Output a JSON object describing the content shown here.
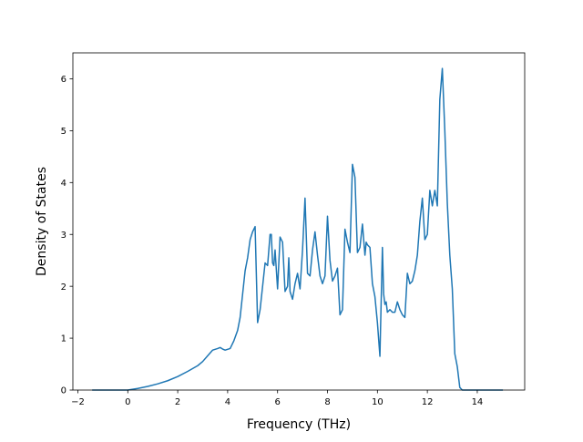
{
  "chart_data": {
    "type": "line",
    "title": "",
    "xlabel": "Frequency (THz)",
    "ylabel": "Density of States",
    "xlim": [
      -2.2,
      15.9
    ],
    "ylim": [
      0,
      6.5
    ],
    "xticks": [
      -2,
      0,
      2,
      4,
      6,
      8,
      10,
      12,
      14
    ],
    "yticks": [
      0,
      1,
      2,
      3,
      4,
      5,
      6
    ],
    "xtick_labels": [
      "−2",
      "0",
      "2",
      "4",
      "6",
      "8",
      "10",
      "12",
      "14"
    ],
    "ytick_labels": [
      "0",
      "1",
      "2",
      "3",
      "4",
      "5",
      "6"
    ],
    "grid": false,
    "legend": "none",
    "line_color": "#1f77b4",
    "series": [
      {
        "x": [
          -1.4,
          -0.6,
          0.0,
          0.4,
          0.8,
          1.2,
          1.6,
          2.0,
          2.4,
          2.8,
          3.0,
          3.2,
          3.4,
          3.6,
          3.7,
          3.8,
          3.9,
          4.1,
          4.25,
          4.4,
          4.5,
          4.6,
          4.7,
          4.8,
          4.9,
          5.0,
          5.1,
          5.2,
          5.3,
          5.4,
          5.5,
          5.6,
          5.7,
          5.75,
          5.8,
          5.85,
          5.9,
          6.0,
          6.1,
          6.2,
          6.3,
          6.4,
          6.45,
          6.5,
          6.6,
          6.7,
          6.8,
          6.9,
          7.0,
          7.1,
          7.2,
          7.3,
          7.4,
          7.5,
          7.6,
          7.7,
          7.8,
          7.9,
          8.0,
          8.1,
          8.2,
          8.3,
          8.4,
          8.5,
          8.6,
          8.7,
          8.8,
          8.9,
          9.0,
          9.1,
          9.2,
          9.3,
          9.4,
          9.5,
          9.55,
          9.6,
          9.7,
          9.8,
          9.9,
          10.0,
          10.1,
          10.2,
          10.25,
          10.3,
          10.35,
          10.4,
          10.5,
          10.6,
          10.7,
          10.8,
          10.9,
          11.0,
          11.1,
          11.2,
          11.3,
          11.4,
          11.5,
          11.6,
          11.7,
          11.8,
          11.9,
          12.0,
          12.1,
          12.2,
          12.3,
          12.4,
          12.5,
          12.6,
          12.7,
          12.75,
          12.8,
          12.9,
          13.0,
          13.1,
          13.2,
          13.3,
          13.4,
          13.5,
          13.6,
          13.7,
          14.0,
          14.5,
          15.0
        ],
        "y": [
          0.0,
          0.0,
          0.0,
          0.03,
          0.07,
          0.12,
          0.18,
          0.26,
          0.36,
          0.47,
          0.55,
          0.66,
          0.77,
          0.8,
          0.82,
          0.79,
          0.77,
          0.8,
          0.95,
          1.15,
          1.4,
          1.85,
          2.3,
          2.55,
          2.9,
          3.05,
          3.15,
          1.3,
          1.55,
          2.0,
          2.45,
          2.4,
          3.0,
          3.0,
          2.45,
          2.4,
          2.7,
          1.95,
          2.95,
          2.85,
          1.9,
          2.0,
          2.55,
          1.9,
          1.75,
          2.05,
          2.25,
          1.95,
          2.7,
          3.7,
          2.25,
          2.2,
          2.7,
          3.05,
          2.6,
          2.2,
          2.05,
          2.2,
          3.35,
          2.5,
          2.1,
          2.2,
          2.35,
          1.45,
          1.55,
          3.1,
          2.85,
          2.65,
          4.35,
          4.1,
          2.65,
          2.75,
          3.2,
          2.6,
          2.85,
          2.8,
          2.75,
          2.05,
          1.8,
          1.3,
          0.65,
          2.75,
          1.85,
          1.65,
          1.7,
          1.5,
          1.55,
          1.5,
          1.5,
          1.7,
          1.55,
          1.45,
          1.4,
          2.25,
          2.05,
          2.1,
          2.3,
          2.6,
          3.25,
          3.7,
          2.9,
          3.0,
          3.85,
          3.55,
          3.85,
          3.55,
          5.6,
          6.2,
          5.0,
          4.3,
          3.6,
          2.6,
          1.95,
          0.7,
          0.45,
          0.05,
          0.0,
          0.0,
          0.0,
          0.0,
          0.0,
          0.0,
          0.0
        ]
      }
    ]
  }
}
